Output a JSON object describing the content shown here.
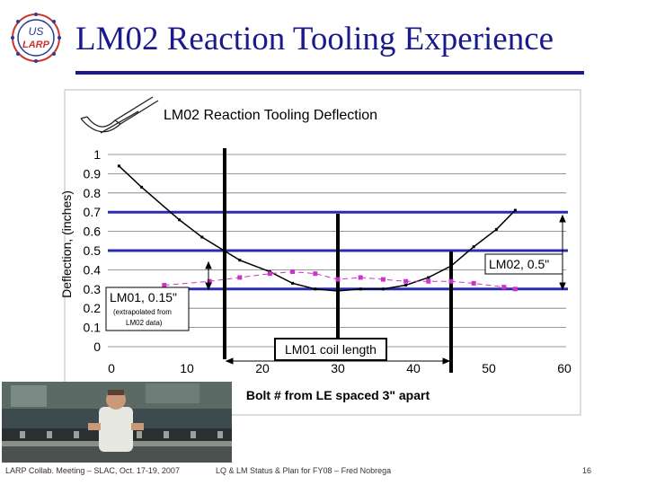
{
  "slide": {
    "title": "LM02 Reaction Tooling Experience",
    "logo_text_top": "US",
    "logo_text_bottom": "LARP"
  },
  "footer": {
    "left": "LARP Collab. Meeting – SLAC, Oct. 17-19, 2007",
    "center": "LQ & LM Status & Plan for FY08 – Fred Nobrega",
    "page": "16"
  },
  "colors": {
    "title": "#1a1a8c",
    "hline": "#2b2bb0",
    "lm02_series": "#000000",
    "lm01_series": "#cc33cc"
  },
  "chart_data": {
    "type": "line",
    "title": "LM02 Reaction Tooling Deflection",
    "xlabel": "Bolt # from LE spaced 3\" apart",
    "ylabel": "Deflection, (inches)",
    "xlim": [
      0,
      60
    ],
    "ylim": [
      0,
      1
    ],
    "x_ticks": [
      "0",
      "10",
      "20",
      "30",
      "40",
      "50",
      "60"
    ],
    "y_ticks": [
      "0",
      "0.1",
      "0.2",
      "0.3",
      "0.4",
      "0.5",
      "0.6",
      "0.7",
      "0.8",
      "0.9",
      "1"
    ],
    "grid": "horizontal",
    "series": [
      {
        "x": [
          1,
          4,
          9,
          12,
          17,
          21,
          24,
          27,
          30,
          33,
          36,
          39,
          42,
          45,
          48,
          51,
          53.5
        ],
        "y": [
          0.94,
          0.83,
          0.66,
          0.57,
          0.45,
          0.39,
          0.33,
          0.3,
          0.29,
          0.3,
          0.3,
          0.32,
          0.36,
          0.42,
          0.52,
          0.61,
          0.71
        ]
      },
      {
        "x": [
          7,
          13,
          17,
          21,
          24,
          27,
          30,
          33,
          36,
          39,
          42,
          45,
          48,
          52,
          53.5
        ],
        "y": [
          0.32,
          0.34,
          0.36,
          0.38,
          0.39,
          0.38,
          0.35,
          0.36,
          0.35,
          0.34,
          0.34,
          0.34,
          0.33,
          0.31,
          0.3
        ]
      }
    ],
    "reference_lines": [
      0.7,
      0.5,
      0.3
    ],
    "annotations": {
      "lm01": "LM01, 0.15\"",
      "lm01_note_1": "(extrapolated from",
      "lm01_note_2": "LM02 data)",
      "lm02": "LM02, 0.5\"",
      "coil_length": "LM01 coil length"
    }
  }
}
